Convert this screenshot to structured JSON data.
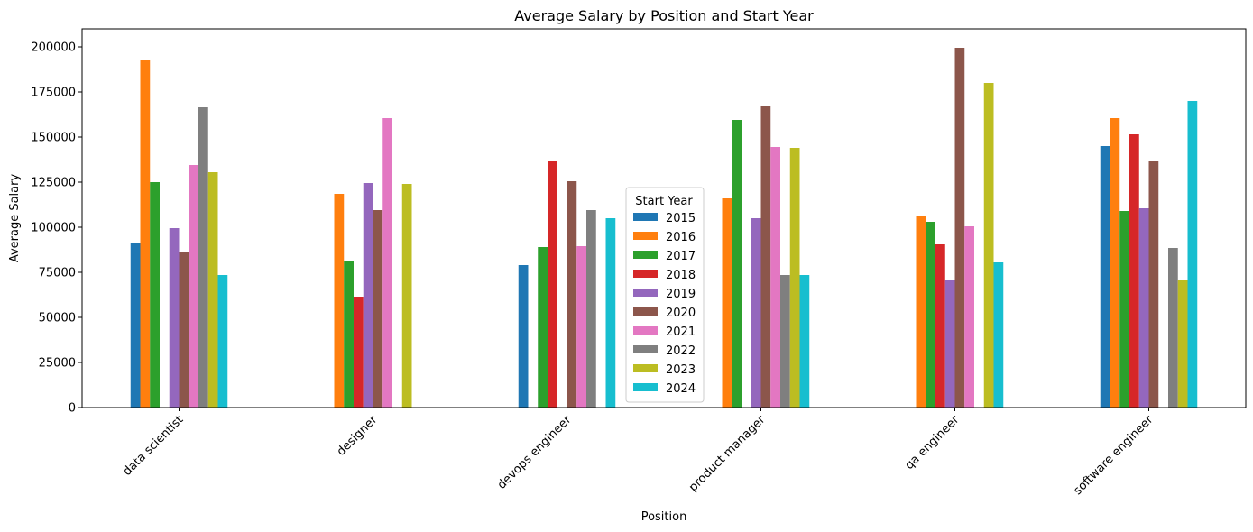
{
  "chart_data": {
    "type": "bar",
    "title": "Average Salary by Position and Start Year",
    "xlabel": "Position",
    "ylabel": "Average Salary",
    "ylim": [
      0,
      210000
    ],
    "yticks": [
      0,
      25000,
      50000,
      75000,
      100000,
      125000,
      150000,
      175000,
      200000
    ],
    "grid": false,
    "legend_title": "Start Year",
    "legend_position": "center",
    "categories": [
      "data scientist",
      "designer",
      "devops engineer",
      "product manager",
      "qa engineer",
      "software engineer"
    ],
    "series": [
      {
        "name": "2015",
        "color": "#1f77b4",
        "values": [
          91000,
          null,
          79000,
          null,
          null,
          145000
        ]
      },
      {
        "name": "2016",
        "color": "#ff7f0e",
        "values": [
          193000,
          118500,
          null,
          116000,
          106000,
          160500
        ]
      },
      {
        "name": "2017",
        "color": "#2ca02c",
        "values": [
          125000,
          81000,
          89000,
          159500,
          103000,
          109000
        ]
      },
      {
        "name": "2018",
        "color": "#d62728",
        "values": [
          null,
          61500,
          137000,
          null,
          90500,
          151500
        ]
      },
      {
        "name": "2019",
        "color": "#9467bd",
        "values": [
          99500,
          124500,
          null,
          105000,
          71000,
          110500
        ]
      },
      {
        "name": "2020",
        "color": "#8c564b",
        "values": [
          86000,
          109500,
          125500,
          167000,
          199500,
          136500
        ]
      },
      {
        "name": "2021",
        "color": "#e377c2",
        "values": [
          134500,
          160500,
          89500,
          144500,
          100500,
          null
        ]
      },
      {
        "name": "2022",
        "color": "#7f7f7f",
        "values": [
          166500,
          null,
          109500,
          73500,
          null,
          88500
        ]
      },
      {
        "name": "2023",
        "color": "#bcbd22",
        "values": [
          130500,
          124000,
          null,
          144000,
          180000,
          71000
        ]
      },
      {
        "name": "2024",
        "color": "#17becf",
        "values": [
          73500,
          null,
          105000,
          73500,
          80500,
          170000
        ]
      }
    ]
  }
}
